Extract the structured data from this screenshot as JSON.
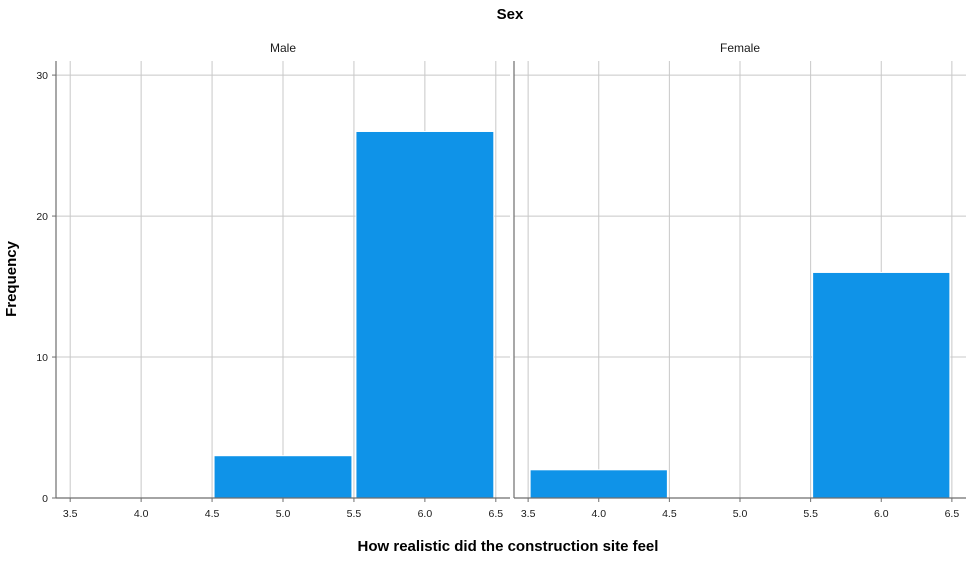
{
  "chart_data": {
    "type": "bar",
    "title": "Sex",
    "xlabel": "How realistic did the construction site feel",
    "ylabel": "Frequency",
    "xlim": [
      3.4,
      6.6
    ],
    "ylim": [
      0,
      31
    ],
    "xticks": [
      "3.5",
      "4.0",
      "4.5",
      "5.0",
      "5.5",
      "6.0",
      "6.5"
    ],
    "yticks": [
      "0",
      "10",
      "20",
      "30"
    ],
    "grid": true,
    "bar_color": "#0f93e8",
    "facets": [
      {
        "name": "Male",
        "bars": [
          {
            "x0": 4.5,
            "x1": 5.5,
            "value": 3
          },
          {
            "x0": 5.5,
            "x1": 6.5,
            "value": 26
          }
        ]
      },
      {
        "name": "Female",
        "bars": [
          {
            "x0": 3.5,
            "x1": 4.5,
            "value": 2
          },
          {
            "x0": 5.5,
            "x1": 6.5,
            "value": 16
          }
        ]
      }
    ]
  }
}
